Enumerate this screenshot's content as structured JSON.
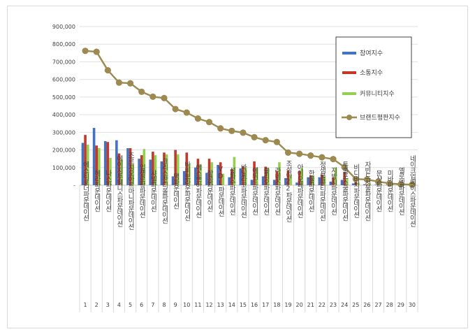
{
  "chart_data": {
    "type": "bar",
    "title": "",
    "xlabel": "",
    "ylabel": "",
    "ylim": [
      0,
      900000
    ],
    "yticks": [
      0,
      100000,
      200000,
      300000,
      400000,
      500000,
      600000,
      700000,
      800000,
      900000
    ],
    "ytick_labels": [
      "-",
      "100,000",
      "200,000",
      "300,000",
      "400,000",
      "500,000",
      "600,000",
      "700,000",
      "800,000",
      "900,000"
    ],
    "grid": "horizontal",
    "legend_position": "right",
    "rank_numbers": [
      "1",
      "2",
      "3",
      "4",
      "5",
      "6",
      "7",
      "8",
      "9",
      "10",
      "11",
      "12",
      "13",
      "14",
      "15",
      "16",
      "17",
      "18",
      "19",
      "20",
      "21",
      "22",
      "23",
      "24",
      "25",
      "26",
      "27",
      "28",
      "29",
      "30"
    ],
    "categories": [
      "에스티로더파운데이션",
      "헤라파운데이션",
      "나스파운데이션",
      "에이지투웨니스파운데이션",
      "조르지오아르마니파운데이션",
      "입생로랑파운데이션",
      "샤넬파운데이션",
      "크리스찬디올파운데이션",
      "맥파운데이션",
      "바비브라운파운데이션",
      "에스쁘아파운데이션",
      "랑콤파운데이션",
      "VDL파운데이션",
      "설화수파운데이션",
      "바닐라코파운데이션",
      "에뛰드파운데이션",
      "클리오파운데이션",
      "라네즈파운데이션",
      "조성아22파운데이션",
      "아이오페파운데이션",
      "한율파운데이션",
      "정샘물뷰티파운데이션",
      "지방시파운데이션",
      "투쿨포스쿨파운데이션",
      "비디비치파운데이션",
      "자빈드서울파운데이션",
      "문샷파운데이션",
      "미바파운데이션",
      "엘로엘파운데이션",
      "네이크업페이스파운데이션"
    ],
    "series": [
      {
        "name": "참여지수",
        "type": "bar",
        "color": "#4472c4",
        "values": [
          240000,
          325000,
          250000,
          255000,
          210000,
          150000,
          145000,
          135000,
          50000,
          80000,
          100000,
          70000,
          115000,
          45000,
          95000,
          30000,
          50000,
          30000,
          40000,
          15000,
          45000,
          45000,
          20000,
          30000,
          10000,
          5000,
          3000,
          2000,
          1000,
          1000
        ]
      },
      {
        "name": "소통지수",
        "type": "bar",
        "color": "#c0392b",
        "values": [
          285000,
          225000,
          245000,
          180000,
          210000,
          170000,
          190000,
          185000,
          200000,
          185000,
          150000,
          150000,
          130000,
          90000,
          105000,
          135000,
          105000,
          80000,
          85000,
          80000,
          55000,
          60000,
          45000,
          75000,
          30000,
          5000,
          10000,
          3000,
          2000,
          1000
        ]
      },
      {
        "name": "커뮤니티지수",
        "type": "bar",
        "color": "#92d050",
        "values": [
          230000,
          210000,
          155000,
          145000,
          120000,
          205000,
          170000,
          175000,
          175000,
          120000,
          115000,
          130000,
          65000,
          160000,
          100000,
          100000,
          95000,
          130000,
          55000,
          95000,
          55000,
          50000,
          100000,
          40000,
          15000,
          10000,
          5000,
          3000,
          2000,
          1000
        ]
      },
      {
        "name": "브랜드평판지수",
        "type": "line",
        "color": "#9c8a50",
        "values": [
          762000,
          757000,
          652000,
          582000,
          578000,
          530000,
          502000,
          494000,
          432000,
          412000,
          378000,
          358000,
          322000,
          308000,
          298000,
          272000,
          255000,
          245000,
          185000,
          178000,
          168000,
          158000,
          148000,
          102000,
          35000,
          32000,
          20000,
          10000,
          5000,
          3000
        ]
      }
    ]
  }
}
